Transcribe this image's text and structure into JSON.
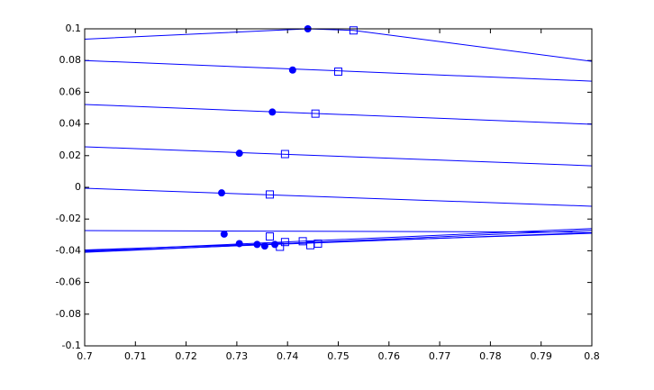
{
  "chart_data": {
    "type": "line",
    "xlim": [
      0.7,
      0.8
    ],
    "ylim": [
      -0.1,
      0.1
    ],
    "xticks": [
      0.7,
      0.71,
      0.72,
      0.73,
      0.74,
      0.75,
      0.76,
      0.77,
      0.78,
      0.79,
      0.8
    ],
    "yticks": [
      -0.1,
      -0.08,
      -0.06,
      -0.04,
      -0.02,
      0,
      0.02,
      0.04,
      0.06,
      0.08,
      0.1
    ],
    "series": [
      {
        "color": "#0000ff",
        "x": [
          0.7,
          0.744,
          0.753,
          0.8
        ],
        "values": [
          0.0935,
          0.1,
          0.099,
          0.0795
        ]
      },
      {
        "color": "#0000ff",
        "x": [
          0.7,
          0.8
        ],
        "values": [
          0.08,
          0.067
        ]
      },
      {
        "color": "#0000ff",
        "x": [
          0.7,
          0.8
        ],
        "values": [
          0.0523,
          0.0398
        ]
      },
      {
        "color": "#0000ff",
        "x": [
          0.7,
          0.8
        ],
        "values": [
          0.0256,
          0.0136
        ]
      },
      {
        "color": "#0000ff",
        "x": [
          0.7,
          0.8
        ],
        "values": [
          -0.0006,
          -0.0119
        ]
      },
      {
        "color": "#0000ff",
        "x": [
          0.7,
          0.8
        ],
        "values": [
          -0.0273,
          -0.0282
        ]
      },
      {
        "color": "#0000ff",
        "x": [
          0.7,
          0.8
        ],
        "values": [
          -0.04,
          -0.026
        ]
      },
      {
        "color": "#0000ff",
        "x": [
          0.7,
          0.8
        ],
        "values": [
          -0.041,
          -0.027
        ]
      },
      {
        "color": "#0000ff",
        "x": [
          0.7,
          0.8
        ],
        "values": [
          -0.0405,
          -0.0285
        ]
      },
      {
        "color": "#0000ff",
        "x": [
          0.7,
          0.8
        ],
        "values": [
          -0.0395,
          -0.029
        ]
      },
      {
        "color": "#0000ff",
        "marker": "circle",
        "x": [
          0.744,
          0.741,
          0.737,
          0.7305,
          0.727,
          0.7275,
          0.7305,
          0.734,
          0.7355,
          0.7375
        ],
        "values": [
          0.1,
          0.074,
          0.0475,
          0.0215,
          -0.0035,
          -0.0295,
          -0.0355,
          -0.036,
          -0.037,
          -0.036
        ]
      },
      {
        "color": "#0000ff",
        "marker": "square",
        "x": [
          0.753,
          0.75,
          0.7455,
          0.7395,
          0.7365,
          0.7365,
          0.7385,
          0.7395,
          0.743,
          0.7445,
          0.746
        ],
        "values": [
          0.099,
          0.073,
          0.0465,
          0.021,
          -0.0045,
          -0.031,
          -0.0375,
          -0.0345,
          -0.034,
          -0.0365,
          -0.0355
        ]
      }
    ]
  }
}
